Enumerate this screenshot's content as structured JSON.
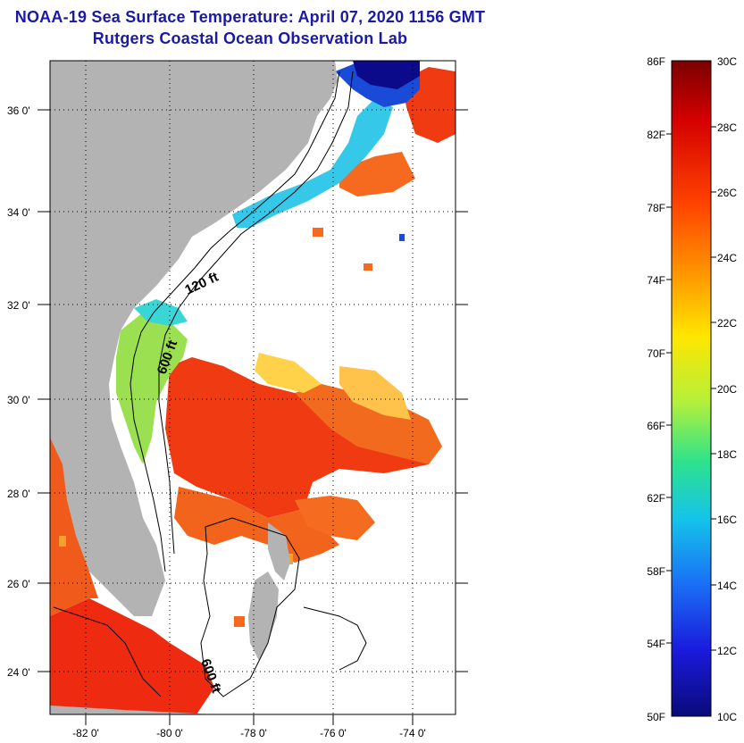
{
  "header": {
    "title": "NOAA-19 Sea Surface Temperature:  April 07, 2020 1156 GMT",
    "subtitle": "Rutgers Coastal Ocean Observation Lab"
  },
  "map": {
    "lat_labels": [
      "36 0'",
      "34 0'",
      "32 0'",
      "30 0'",
      "28 0'",
      "26 0'",
      "24 0'"
    ],
    "lon_labels": [
      "-82 0'",
      "-80 0'",
      "-78 0'",
      "-76 0'",
      "-74 0'"
    ],
    "contours": [
      {
        "label": "120 ft"
      },
      {
        "label": "600 ft"
      },
      {
        "label": "600 ft"
      }
    ]
  },
  "colorbar": {
    "fahrenheit": [
      "86F",
      "82F",
      "78F",
      "74F",
      "70F",
      "66F",
      "62F",
      "58F",
      "54F",
      "50F"
    ],
    "celsius": [
      "30C",
      "28C",
      "26C",
      "24C",
      "22C",
      "20C",
      "18C",
      "16C",
      "14C",
      "12C",
      "10C"
    ],
    "colors": [
      "#7a0000",
      "#d40000",
      "#ff4400",
      "#ff9a00",
      "#ffe600",
      "#b5f03a",
      "#2fe38a",
      "#14c3ea",
      "#1a6ef5",
      "#1a1adc",
      "#0a0a7a"
    ]
  }
}
